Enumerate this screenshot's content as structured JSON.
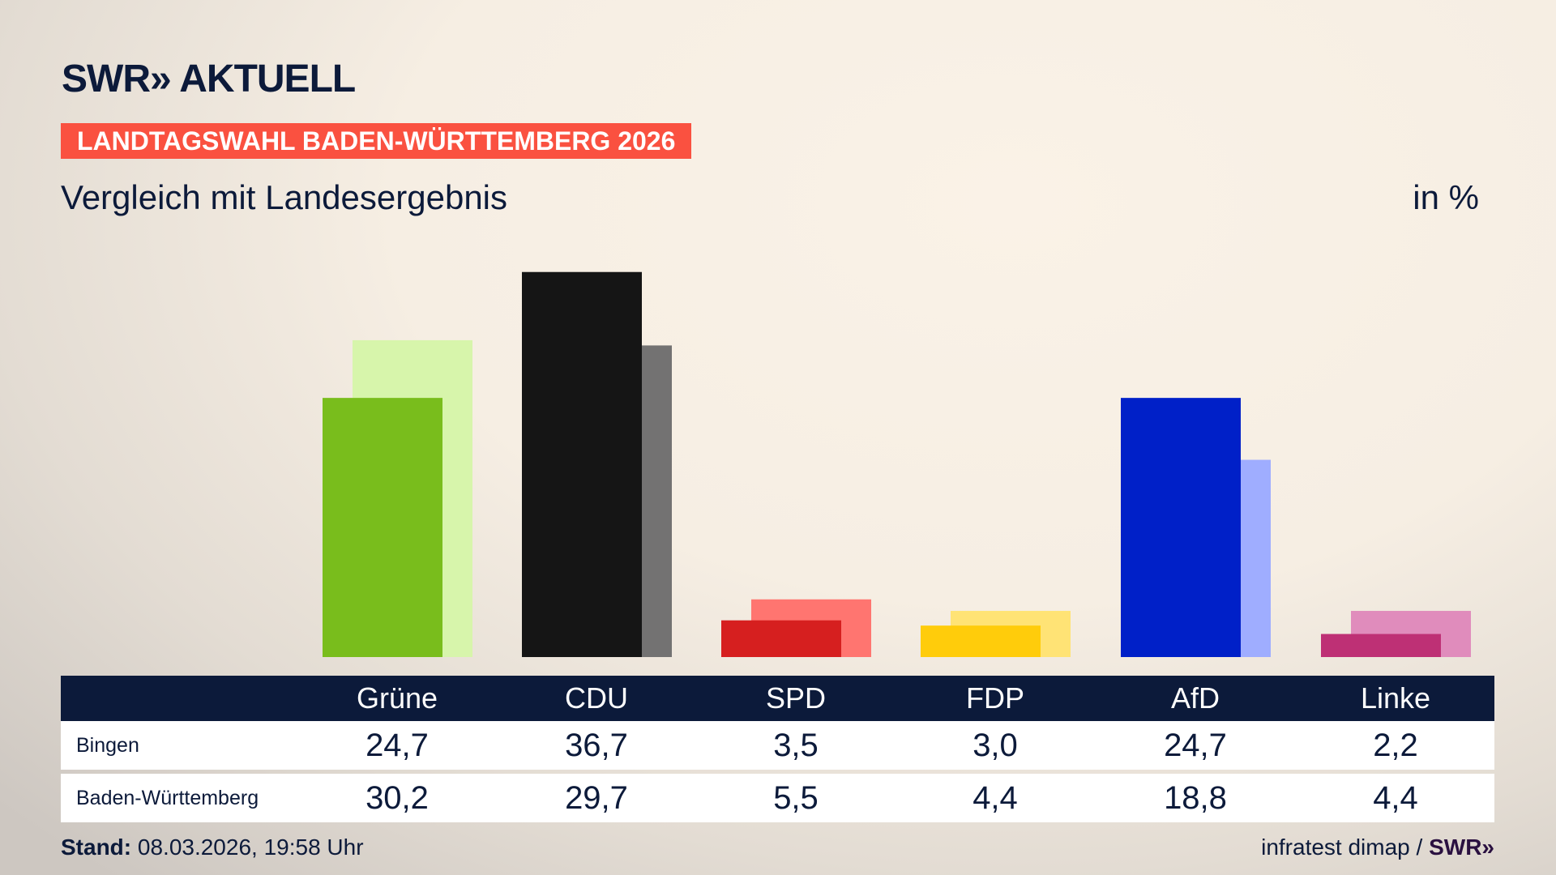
{
  "header": {
    "logo": "SWR» AKTUELL",
    "banner": "LANDTAGSWAHL BADEN-WÜRTTEMBERG 2026",
    "subtitle": "Vergleich mit Landesergebnis",
    "unit": "in %"
  },
  "chart_data": {
    "type": "bar",
    "categories": [
      "Grüne",
      "CDU",
      "SPD",
      "FDP",
      "AfD",
      "Linke"
    ],
    "series": [
      {
        "name": "Bingen",
        "values": [
          24.7,
          36.7,
          3.5,
          3.0,
          24.7,
          2.2
        ],
        "colors": [
          "#79bd1c",
          "#151515",
          "#d61f1f",
          "#ffcc0b",
          "#0020c8",
          "#be3075"
        ]
      },
      {
        "name": "Baden-Württemberg",
        "values": [
          30.2,
          29.7,
          5.5,
          4.4,
          18.8,
          4.4
        ],
        "colors": [
          "#d7f5ab",
          "#737272",
          "#ff7570",
          "#ffe375",
          "#9fadff",
          "#e08cbc"
        ]
      }
    ],
    "ylim": [
      0,
      40
    ]
  },
  "table": {
    "headers": [
      "Grüne",
      "CDU",
      "SPD",
      "FDP",
      "AfD",
      "Linke"
    ],
    "rows": [
      {
        "label": "Bingen",
        "values": [
          "24,7",
          "36,7",
          "3,5",
          "3,0",
          "24,7",
          "2,2"
        ]
      },
      {
        "label": "Baden-Württemberg",
        "values": [
          "30,2",
          "29,7",
          "5,5",
          "4,4",
          "18,8",
          "4,4"
        ]
      }
    ]
  },
  "footer": {
    "stand_label": "Stand:",
    "stand_value": "08.03.2026, 19:58 Uhr",
    "source": "infratest dimap / ",
    "source_logo": "SWR»"
  },
  "colors": {
    "navy": "#0c1a3a",
    "banner": "#fa5140"
  }
}
